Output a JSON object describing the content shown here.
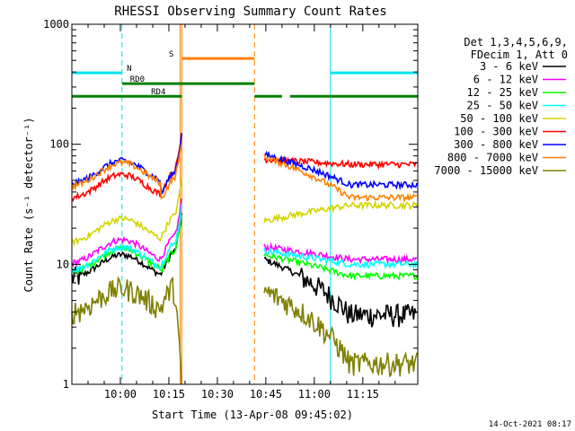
{
  "chart_data": {
    "type": "line",
    "title": "RHESSI Observing Summary Count Rates",
    "xlabel": "Start Time (13-Apr-08 09:45:02)",
    "ylabel": "Count Rate (s⁻¹ detector⁻¹)",
    "y_scale": "log",
    "ylim": [
      1,
      1000
    ],
    "xlim_minutes": [
      -15.0,
      92.0
    ],
    "x_ticks": [
      {
        "t": 0,
        "label": "10:00"
      },
      {
        "t": 15,
        "label": "10:15"
      },
      {
        "t": 30,
        "label": "10:30"
      },
      {
        "t": 45,
        "label": "10:45"
      },
      {
        "t": 60,
        "label": "11:00"
      },
      {
        "t": 75,
        "label": "11:15"
      }
    ],
    "y_ticks": [
      {
        "v": 1,
        "label": "1"
      },
      {
        "v": 10,
        "label": "10"
      },
      {
        "v": 100,
        "label": "100"
      },
      {
        "v": 1000,
        "label": "1000"
      }
    ],
    "gaps_minutes": [
      [
        19.0,
        44.5
      ]
    ],
    "event_line_minutes": 18.5,
    "legend_header": [
      "Det 1,3,4,5,6,9,",
      "FDecim 1, Att 0"
    ],
    "series": [
      {
        "name": "3 - 6 keV",
        "color": "#000000",
        "pre": 12.0,
        "atten": 1.0,
        "post": [
          11.0,
          3.8
        ]
      },
      {
        "name": "6 - 12 keV",
        "color": "#ff00ff",
        "pre": 16.0,
        "atten": 1.0,
        "post": [
          14.0,
          11.0
        ]
      },
      {
        "name": "12 - 25 keV",
        "color": "#00ff00",
        "pre": 13.5,
        "atten": 0.9,
        "post": [
          12.0,
          8.0
        ]
      },
      {
        "name": "25 - 50 keV",
        "color": "#00ffff",
        "pre": 14.0,
        "atten": 1.0,
        "post": [
          13.0,
          10.0
        ]
      },
      {
        "name": "50 - 100 keV",
        "color": "#d4d400",
        "pre": 24.0,
        "atten": 1.0,
        "post": [
          23.0,
          31.0
        ]
      },
      {
        "name": "100 - 300 keV",
        "color": "#ff0000",
        "pre": 56.0,
        "atten": 1.0,
        "post": [
          75.0,
          68.0
        ]
      },
      {
        "name": "300 - 800 keV",
        "color": "#0000ff",
        "pre": 73.0,
        "atten": 0.75,
        "post": [
          82.0,
          46.0
        ]
      },
      {
        "name": "800 - 7000 keV",
        "color": "#ff8000",
        "pre": 70.0,
        "atten": 0.7,
        "post": [
          78.0,
          36.0
        ]
      },
      {
        "name": "7000 - 15000 keV",
        "color": "#808000",
        "pre": 6.3,
        "atten": 1.0,
        "post": [
          6.0,
          1.5
        ]
      }
    ],
    "flags": [
      {
        "name": "N",
        "label": "N",
        "color": "#00e5ee",
        "level_frac": 0.865,
        "segments": [
          [
            -15.0,
            0.5
          ],
          [
            65.0,
            92.0
          ]
        ],
        "label_t": 2.0
      },
      {
        "name": "S",
        "label": "S",
        "color": "#ff8000",
        "level_frac": 0.905,
        "segments": [
          [
            19.0,
            41.5
          ]
        ],
        "label_t": 15.0
      },
      {
        "name": "RD0",
        "label": "RD0",
        "color": "#008000",
        "level_frac": 0.835,
        "segments": [
          [
            0.5,
            41.5
          ]
        ],
        "label_t": 3.0
      },
      {
        "name": "RD4",
        "label": "RD4",
        "color": "#008000",
        "level_frac": 0.8,
        "segments": [
          [
            -15.0,
            19.0
          ],
          [
            41.5,
            50.0
          ],
          [
            52.5,
            92.0
          ]
        ],
        "label_t": 9.5
      }
    ],
    "vlines": [
      {
        "t": -15.0,
        "color": "#00e5ee",
        "dash": false
      },
      {
        "t": 0.5,
        "color": "#00e5ee",
        "dash": true
      },
      {
        "t": 18.5,
        "color": "#ff8000",
        "dash": false
      },
      {
        "t": 19.0,
        "color": "#ff8000",
        "dash": false
      },
      {
        "t": 41.5,
        "color": "#ff8000",
        "dash": true
      },
      {
        "t": 65.0,
        "color": "#00e5ee",
        "dash": false
      },
      {
        "t": 92.0,
        "color": "#00e5ee",
        "dash": true
      }
    ],
    "timestamp": "14-Oct-2021 08:17"
  }
}
